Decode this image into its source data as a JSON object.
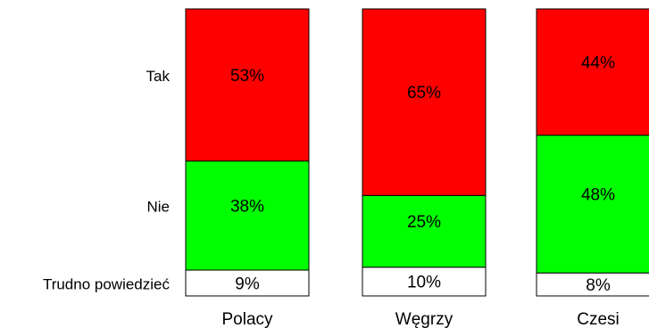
{
  "chart_data": {
    "type": "bar",
    "stacked": true,
    "percent_stacked": true,
    "categories": [
      "Polacy",
      "Węgrzy",
      "Czesi"
    ],
    "series": [
      {
        "name": "Trudno powiedzieć",
        "values": [
          9,
          10,
          8
        ],
        "color": "#ffffff"
      },
      {
        "name": "Nie",
        "values": [
          38,
          25,
          48
        ],
        "color": "#00ff00"
      },
      {
        "name": "Tak",
        "values": [
          53,
          65,
          44
        ],
        "color": "#ff0000"
      }
    ],
    "data_labels": {
      "Polacy": [
        "9%",
        "38%",
        "53%"
      ],
      "Węgrzy": [
        "10%",
        "25%",
        "65%"
      ],
      "Czesi": [
        "8%",
        "48%",
        "44%"
      ]
    },
    "ylim": [
      0,
      100
    ],
    "legend": "left",
    "grid": false
  }
}
